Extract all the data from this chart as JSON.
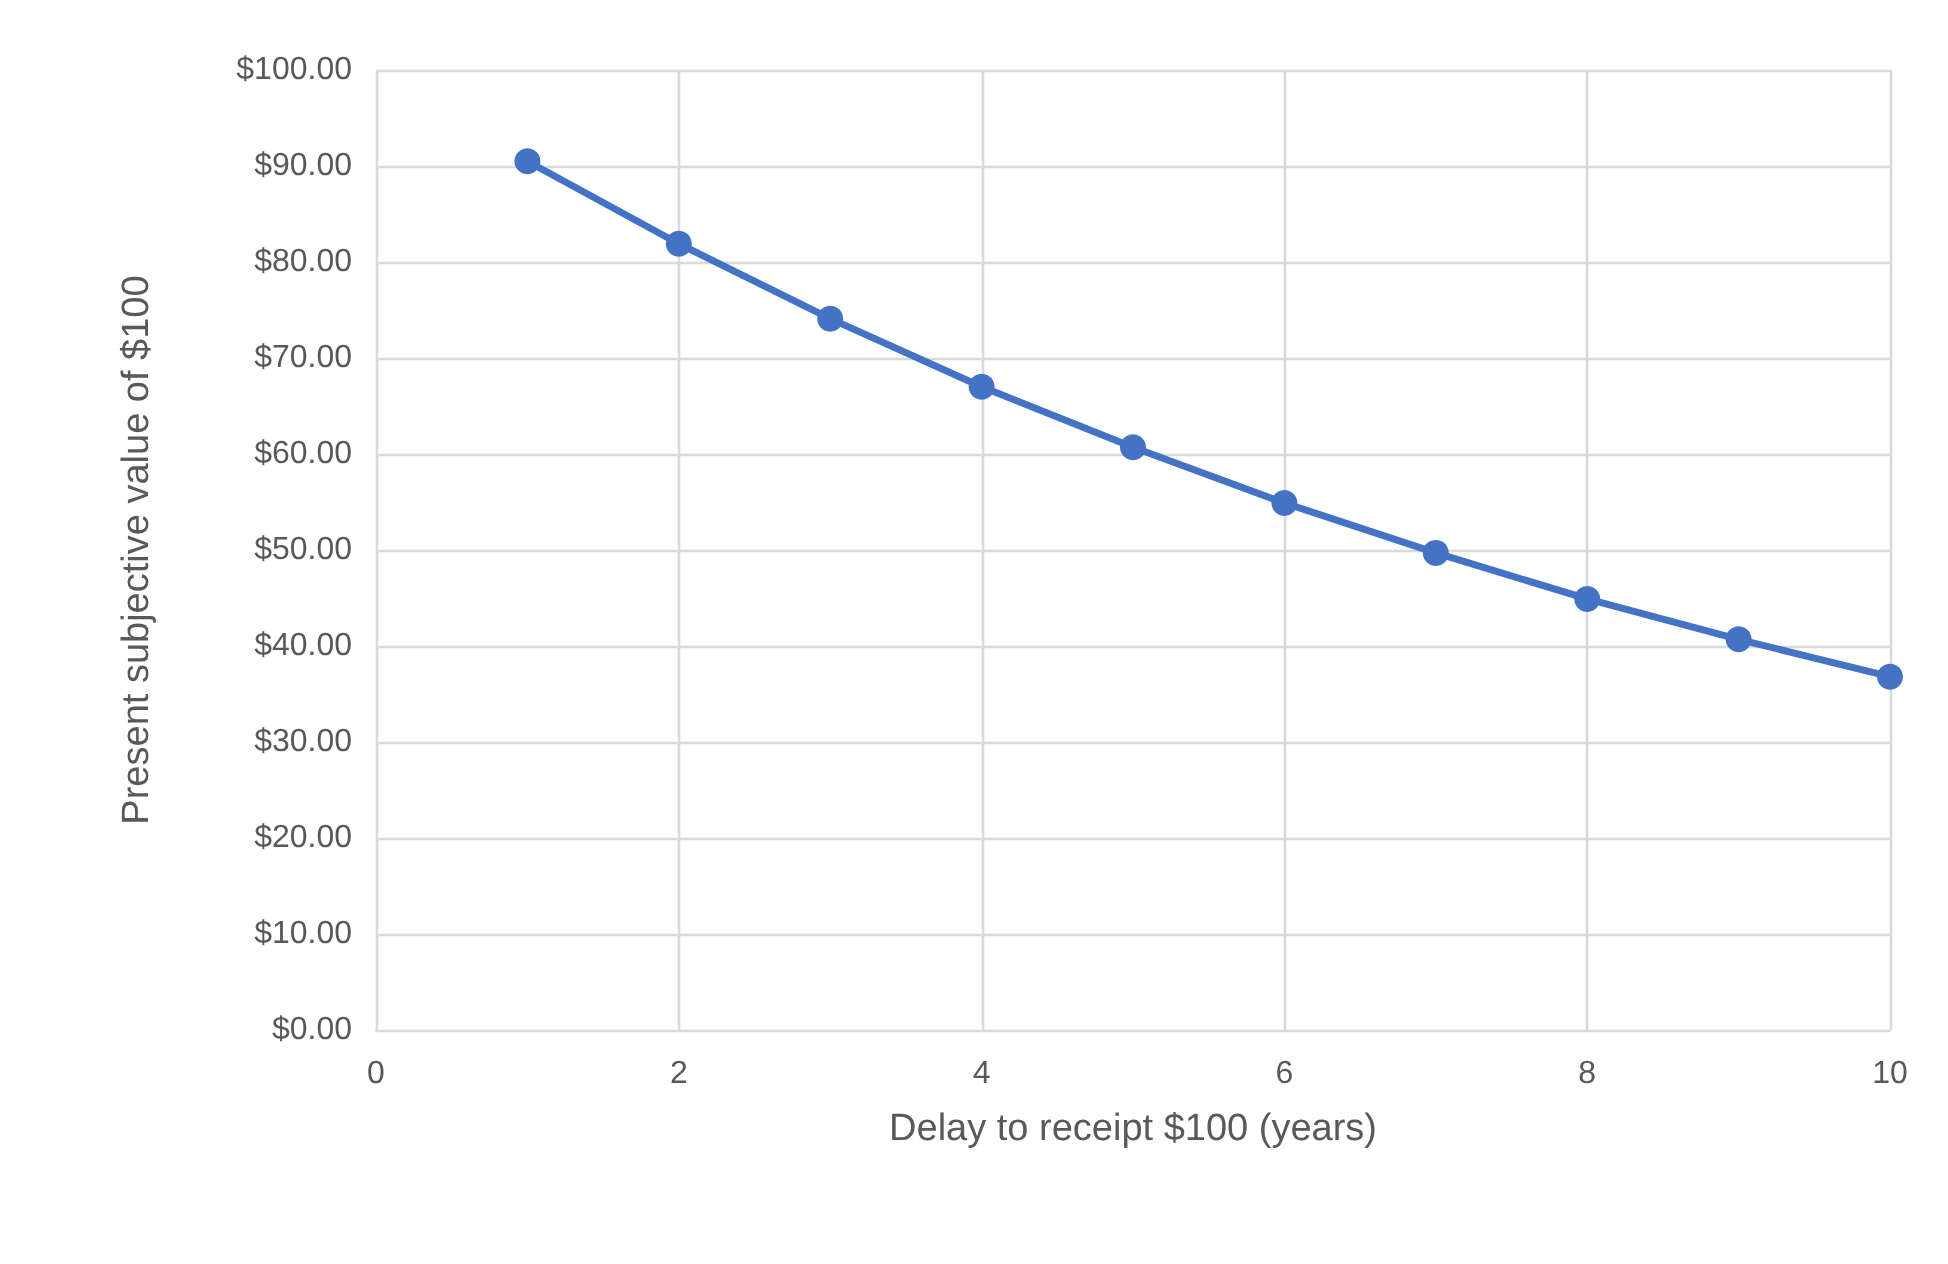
{
  "chart_data": {
    "type": "line",
    "xlabel": "Delay to receipt $100 (years)",
    "ylabel": "Present subjective value of $100",
    "x": [
      1,
      2,
      3,
      4,
      5,
      6,
      7,
      8,
      9,
      10
    ],
    "series": [
      {
        "color": "#4472c4",
        "values": [
          90.5,
          81.9,
          74.1,
          67.0,
          60.7,
          54.9,
          49.7,
          44.9,
          40.7,
          36.8
        ]
      }
    ],
    "xlim": [
      0,
      10
    ],
    "xticks": [
      0,
      2,
      4,
      6,
      8,
      10
    ],
    "ylim": [
      0,
      100
    ],
    "yticks": [
      {
        "value": 0,
        "label": "$0.00"
      },
      {
        "value": 10,
        "label": "$10.00"
      },
      {
        "value": 20,
        "label": "$20.00"
      },
      {
        "value": 30,
        "label": "$30.00"
      },
      {
        "value": 40,
        "label": "$40.00"
      },
      {
        "value": 50,
        "label": "$50.00"
      },
      {
        "value": 60,
        "label": "$60.00"
      },
      {
        "value": 70,
        "label": "$70.00"
      },
      {
        "value": 80,
        "label": "$80.00"
      },
      {
        "value": 90,
        "label": "$90.00"
      },
      {
        "value": 100,
        "label": "$100.00"
      }
    ],
    "grid": true,
    "marker": "circle",
    "line_style": "solid"
  }
}
